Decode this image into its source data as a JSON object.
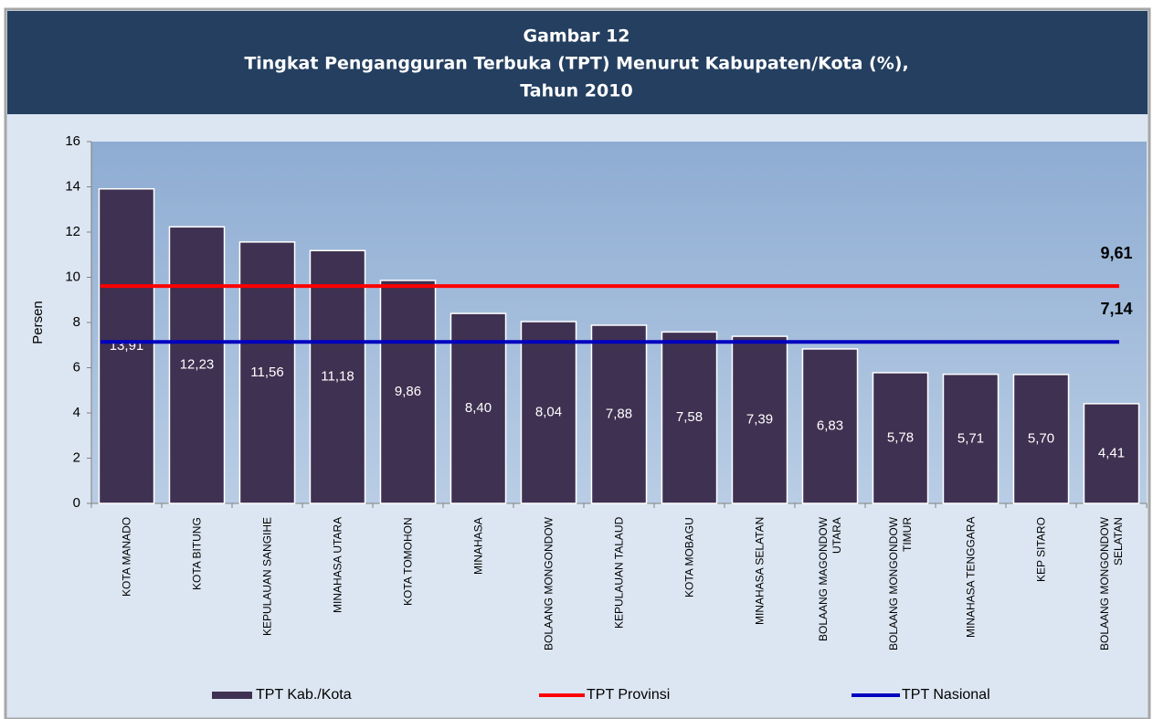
{
  "chart_data": {
    "type": "bar",
    "title_lines": [
      "Gambar 12",
      "Tingkat Pengangguran Terbuka (TPT) Menurut Kabupaten/Kota (%),",
      "Tahun 2010"
    ],
    "y_label": "Persen",
    "categories": [
      "KOTA MANADO",
      "KOTA BITUNG",
      "KEPULAUAN SANGIHE",
      "MINAHASA UTARA",
      "KOTA TOMOHON",
      "MINAHASA",
      "BOLAANG MONGONDOW",
      "KEPULAUAN TALAUD",
      "KOTA MOBAGU",
      "MINAHASA SELATAN",
      "BOLAANG MAGONDOW\nUTARA",
      "BOLAANG MONGONDOW\nTIMUR",
      "MINAHASA TENGGARA",
      "KEP SITARO",
      "BOLAANG MONGONDOW\nSELATAN"
    ],
    "series": [
      {
        "name": "TPT Kab./Kota",
        "color": "#3f3151",
        "values": [
          13.91,
          12.23,
          11.56,
          11.18,
          9.86,
          8.4,
          8.04,
          7.88,
          7.58,
          7.39,
          6.83,
          5.78,
          5.71,
          5.7,
          4.41
        ],
        "value_labels": [
          "13,91",
          "12,23",
          "11,56",
          "11,18",
          "9,86",
          "8,40",
          "8,04",
          "7,88",
          "7,58",
          "7,39",
          "6,83",
          "5,78",
          "5,71",
          "5,70",
          "4,41"
        ]
      }
    ],
    "reference_lines": [
      {
        "name": "TPT Provinsi",
        "color": "#ff0000",
        "value": 9.61,
        "value_label": "9,61"
      },
      {
        "name": "TPT Nasional",
        "color": "#0000c0",
        "value": 7.14,
        "value_label": "7,14"
      }
    ],
    "ylim": [
      0,
      16
    ],
    "yticks": [
      0,
      2,
      4,
      6,
      8,
      10,
      12,
      14,
      16
    ],
    "legend": "bottom"
  }
}
